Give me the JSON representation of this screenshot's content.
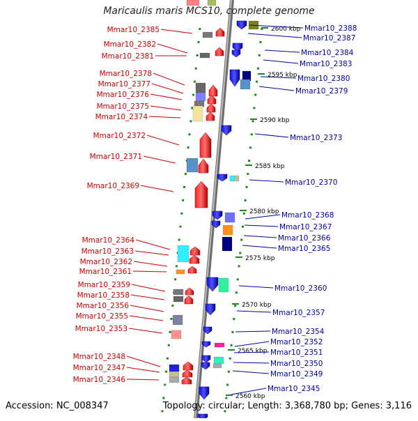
{
  "title": "Maricaulis maris MCS10, complete genome",
  "accession": "Accession: NC_008347",
  "summary": "Topology: circular; Length: 3,368,780 bp; Genes: 3,116",
  "colors": {
    "left_label": "#cc0000",
    "right_label": "#0000aa",
    "ruler": "#1a8a1a",
    "backbone": "#8c8c8c"
  },
  "ruler_ticks": [
    {
      "label": "2600 kbp"
    },
    {
      "label": "2595 kbp"
    },
    {
      "label": "2590 kbp"
    },
    {
      "label": "2585 kbp"
    },
    {
      "label": "2580 kbp"
    },
    {
      "label": "2575 kbp"
    },
    {
      "label": "2570 kbp"
    },
    {
      "label": "2565 kbp"
    },
    {
      "label": "2560 kbp"
    }
  ],
  "left_genes": [
    {
      "label": "Mmar10_2385"
    },
    {
      "label": "Mmar10_2382"
    },
    {
      "label": "Mmar10_2381"
    },
    {
      "label": "Mmar10_2378"
    },
    {
      "label": "Mmar10_2377"
    },
    {
      "label": "Mmar10_2376"
    },
    {
      "label": "Mmar10_2375"
    },
    {
      "label": "Mmar10_2374"
    },
    {
      "label": "Mmar10_2372"
    },
    {
      "label": "Mmar10_2371"
    },
    {
      "label": "Mmar10_2369"
    },
    {
      "label": "Mmar10_2364"
    },
    {
      "label": "Mmar10_2363"
    },
    {
      "label": "Mmar10_2362"
    },
    {
      "label": "Mmar10_2361"
    },
    {
      "label": "Mmar10_2359"
    },
    {
      "label": "Mmar10_2358"
    },
    {
      "label": "Mmar10_2356"
    },
    {
      "label": "Mmar10_2355"
    },
    {
      "label": "Mmar10_2353"
    },
    {
      "label": "Mmar10_2348"
    },
    {
      "label": "Mmar10_2347"
    },
    {
      "label": "Mmar10_2346"
    }
  ],
  "right_genes": [
    {
      "label": "Mmar10_2388"
    },
    {
      "label": "Mmar10_2387"
    },
    {
      "label": "Mmar10_2384"
    },
    {
      "label": "Mmar10_2383"
    },
    {
      "label": "Mmar10_2380"
    },
    {
      "label": "Mmar10_2379"
    },
    {
      "label": "Mmar10_2373"
    },
    {
      "label": "Mmar10_2370"
    },
    {
      "label": "Mmar10_2368"
    },
    {
      "label": "Mmar10_2367"
    },
    {
      "label": "Mmar10_2366"
    },
    {
      "label": "Mmar10_2365"
    },
    {
      "label": "Mmar10_2360"
    },
    {
      "label": "Mmar10_2357"
    },
    {
      "label": "Mmar10_2354"
    },
    {
      "label": "Mmar10_2352"
    },
    {
      "label": "Mmar10_2351"
    },
    {
      "label": "Mmar10_2350"
    },
    {
      "label": "Mmar10_2349"
    },
    {
      "label": "Mmar10_2345"
    }
  ]
}
